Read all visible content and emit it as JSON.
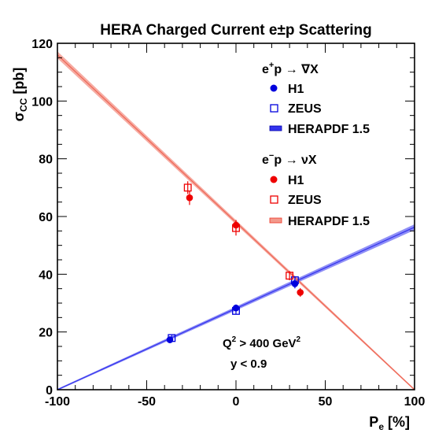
{
  "chart_data": {
    "type": "scatter",
    "title": "HERA Charged Current e±p Scattering",
    "xlabel": "Pe [%]",
    "ylabel": "σCC [pb]",
    "xlim": [
      -100,
      100
    ],
    "ylim": [
      0,
      120
    ],
    "x_ticks": [
      -100,
      -50,
      0,
      50,
      100
    ],
    "y_ticks": [
      0,
      20,
      40,
      60,
      80,
      100,
      120
    ],
    "grid": false,
    "legend_position": "top-right",
    "legend_groups": [
      {
        "header": "e⁺p → νX",
        "entries": [
          {
            "label": "H1",
            "marker": "filled-circle",
            "color": "#0000dd"
          },
          {
            "label": "ZEUS",
            "marker": "open-square",
            "color": "#0000dd"
          },
          {
            "label": "HERAPDF 1.5",
            "marker": "band",
            "color": "#3333ee"
          }
        ]
      },
      {
        "header": "e⁻p → νX",
        "entries": [
          {
            "label": "H1",
            "marker": "filled-circle",
            "color": "#ee0000"
          },
          {
            "label": "ZEUS",
            "marker": "open-square",
            "color": "#ee0000"
          },
          {
            "label": "HERAPDF 1.5",
            "marker": "band",
            "color": "#ee6655"
          }
        ]
      }
    ],
    "annotations": [
      "Q² > 400 GeV²",
      "y < 0.9"
    ],
    "series": [
      {
        "process": "e+p",
        "experiment": "H1",
        "color": "#0000dd",
        "marker": "circle",
        "x": [
          -37,
          0,
          33
        ],
        "y": [
          17.3,
          28.3,
          36.7
        ],
        "err": [
          1.2,
          1.2,
          1.6
        ]
      },
      {
        "process": "e+p",
        "experiment": "ZEUS",
        "color": "#0000dd",
        "marker": "square",
        "x": [
          -36,
          0,
          33
        ],
        "y": [
          17.9,
          27.3,
          37.9
        ],
        "err": [
          1.0,
          1.2,
          1.4
        ]
      },
      {
        "process": "e-p",
        "experiment": "H1",
        "color": "#ee0000",
        "marker": "circle",
        "x": [
          -26,
          0,
          36
        ],
        "y": [
          66.5,
          57.0,
          33.7
        ],
        "err": [
          2.5,
          1.8,
          1.5
        ]
      },
      {
        "process": "e-p",
        "experiment": "ZEUS",
        "color": "#ee0000",
        "marker": "square",
        "x": [
          -27,
          0,
          30
        ],
        "y": [
          70.0,
          56.0,
          39.5
        ],
        "err": [
          2.2,
          2.6,
          1.6
        ]
      }
    ],
    "bands": [
      {
        "process": "e+p",
        "label": "HERAPDF 1.5",
        "color": "#3333ee",
        "x": [
          -100,
          100
        ],
        "y": [
          0,
          56.3
        ],
        "half_width": [
          0.3,
          1.0
        ]
      },
      {
        "process": "e-p",
        "label": "HERAPDF 1.5",
        "color": "#ee6655",
        "x": [
          -100,
          100
        ],
        "y": [
          116.0,
          0
        ],
        "half_width": [
          1.2,
          0.3
        ]
      }
    ]
  }
}
